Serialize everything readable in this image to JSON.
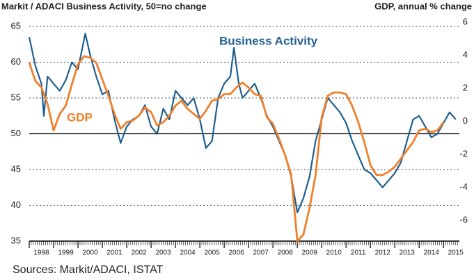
{
  "chart_data": {
    "type": "line",
    "title": "Markit / ADACI  Business Activity, 50=no change",
    "y2_label": "GDP, annual % change",
    "source": "Sources: Markit/ADACI, ISTAT",
    "annotations": [
      "Business Activity",
      "GDP"
    ],
    "xlim": [
      1998,
      2015.65
    ],
    "xticks": [
      {
        "value": 1998.5,
        "label": "1998"
      },
      {
        "value": 1999.5,
        "label": "1999"
      },
      {
        "value": 2000.5,
        "label": "2000"
      },
      {
        "value": 2001.5,
        "label": "2001"
      },
      {
        "value": 2002.5,
        "label": "2002"
      },
      {
        "value": 2003.5,
        "label": "2003"
      },
      {
        "value": 2004.5,
        "label": "2004"
      },
      {
        "value": 2005.5,
        "label": "2005"
      },
      {
        "value": 2006.5,
        "label": "2006"
      },
      {
        "value": 2007.5,
        "label": "2007"
      },
      {
        "value": 2008.5,
        "label": "2008"
      },
      {
        "value": 2009.5,
        "label": "2009"
      },
      {
        "value": 2010.5,
        "label": "2010"
      },
      {
        "value": 2011.5,
        "label": "2011"
      },
      {
        "value": 2012.5,
        "label": "2012"
      },
      {
        "value": 2013.5,
        "label": "2013"
      },
      {
        "value": 2014.5,
        "label": "2014"
      },
      {
        "value": 2015.5,
        "label": "2015"
      }
    ],
    "ylim": [
      35,
      65
    ],
    "yticks": [
      35,
      40,
      45,
      50,
      55,
      60,
      65
    ],
    "y2lim": [
      -7,
      6
    ],
    "y2ticks": [
      -6,
      -4,
      -2,
      0,
      2,
      4,
      6
    ],
    "hline": 50,
    "grid": true,
    "series": [
      {
        "name": "Business Activity",
        "color": "#1f5f8f",
        "axis": "y",
        "x": [
          1998.0,
          1998.25,
          1998.5,
          1998.6,
          1998.75,
          1999.0,
          1999.25,
          1999.5,
          1999.75,
          2000.0,
          2000.3,
          2000.5,
          2000.75,
          2001.0,
          2001.25,
          2001.5,
          2001.75,
          2002.0,
          2002.25,
          2002.5,
          2002.75,
          2003.0,
          2003.25,
          2003.5,
          2003.75,
          2004.0,
          2004.25,
          2004.5,
          2004.75,
          2005.0,
          2005.25,
          2005.5,
          2005.75,
          2006.0,
          2006.25,
          2006.4,
          2006.6,
          2006.75,
          2007.0,
          2007.25,
          2007.5,
          2007.75,
          2008.0,
          2008.25,
          2008.5,
          2008.75,
          2009.0,
          2009.25,
          2009.5,
          2009.75,
          2010.0,
          2010.25,
          2010.5,
          2010.75,
          2011.0,
          2011.25,
          2011.5,
          2011.75,
          2012.0,
          2012.25,
          2012.5,
          2012.75,
          2013.0,
          2013.25,
          2013.5,
          2013.75,
          2014.0,
          2014.25,
          2014.5,
          2014.75,
          2015.0,
          2015.25,
          2015.5
        ],
        "values": [
          63.5,
          59.5,
          57,
          52.5,
          58,
          57,
          56,
          57.5,
          60,
          59,
          64,
          61,
          58,
          55.5,
          56,
          52,
          48.7,
          51,
          52,
          52.5,
          54,
          51,
          50,
          53.5,
          52,
          56,
          55,
          54,
          55,
          52,
          48,
          49,
          55,
          57,
          58,
          62,
          57,
          55,
          56,
          57,
          55,
          52.5,
          51,
          49,
          47,
          44,
          39,
          41,
          44,
          49,
          52,
          55,
          54,
          53,
          51.5,
          49,
          47,
          45,
          44.5,
          43.5,
          42.5,
          43.5,
          44.5,
          46,
          49,
          52,
          52.5,
          51,
          49.5,
          50,
          51.5,
          53,
          52
        ]
      },
      {
        "name": "GDP",
        "color": "#f07f2a",
        "axis": "y2",
        "x": [
          1998.0,
          1998.25,
          1998.5,
          1998.75,
          1999.0,
          1999.25,
          1999.5,
          1999.75,
          2000.0,
          2000.25,
          2000.5,
          2000.75,
          2001.0,
          2001.25,
          2001.5,
          2001.75,
          2002.0,
          2002.25,
          2002.5,
          2002.75,
          2003.0,
          2003.25,
          2003.5,
          2003.75,
          2004.0,
          2004.25,
          2004.5,
          2004.75,
          2005.0,
          2005.25,
          2005.5,
          2005.75,
          2006.0,
          2006.25,
          2006.5,
          2006.75,
          2007.0,
          2007.25,
          2007.5,
          2007.75,
          2008.0,
          2008.25,
          2008.5,
          2008.75,
          2009.0,
          2009.25,
          2009.5,
          2009.75,
          2010.0,
          2010.25,
          2010.5,
          2010.75,
          2011.0,
          2011.25,
          2011.5,
          2011.75,
          2012.0,
          2012.25,
          2012.5,
          2012.75,
          2013.0,
          2013.25,
          2013.5,
          2013.75,
          2014.0,
          2014.25,
          2014.5,
          2014.75,
          2015.0
        ],
        "values": [
          3.8,
          2.7,
          2.3,
          1.3,
          -0.3,
          0.7,
          1.2,
          2.5,
          3.7,
          4.2,
          4.1,
          3.8,
          2.8,
          1.8,
          0.7,
          -0.2,
          0.2,
          0.3,
          0.6,
          1.1,
          0.8,
          0.0,
          0.2,
          0.6,
          1.2,
          1.5,
          1.0,
          0.7,
          0.4,
          0.9,
          1.5,
          1.6,
          1.9,
          1.9,
          2.3,
          2.6,
          2.3,
          1.9,
          1.8,
          0.5,
          0.1,
          -0.8,
          -1.8,
          -3.0,
          -7.0,
          -6.6,
          -5.0,
          -3.0,
          0.5,
          1.8,
          2.0,
          2.0,
          1.9,
          1.2,
          0.2,
          -1.0,
          -2.4,
          -3.0,
          -3.0,
          -2.8,
          -2.5,
          -2.0,
          -1.5,
          -1.0,
          -0.3,
          -0.2,
          -0.4,
          -0.3,
          0.2
        ]
      }
    ]
  }
}
